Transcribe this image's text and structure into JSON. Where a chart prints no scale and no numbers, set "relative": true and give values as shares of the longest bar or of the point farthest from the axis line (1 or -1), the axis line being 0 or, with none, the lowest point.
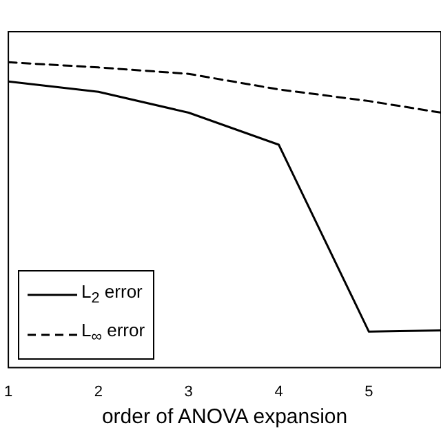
{
  "chart_data": {
    "type": "line",
    "xlabel": "order of ANOVA expansion",
    "relative": true,
    "x": [
      1,
      2,
      3,
      4,
      5,
      5.8
    ],
    "xlim": [
      1,
      5.8
    ],
    "xticks": [
      1,
      2,
      3,
      4,
      5
    ],
    "legend": "bottom left",
    "grid": false,
    "marker": "none",
    "series": [
      {
        "name": "L$_{2}$ error",
        "color": "#000000",
        "line_style": "solid",
        "values": [
          0.937,
          0.903,
          0.835,
          0.73,
          0.118,
          0.122
        ]
      },
      {
        "name": "L$_{∞}$ error",
        "color": "#000000",
        "line_style": "dashed",
        "values": [
          1,
          0.983,
          0.962,
          0.911,
          0.873,
          0.835
        ]
      }
    ]
  }
}
